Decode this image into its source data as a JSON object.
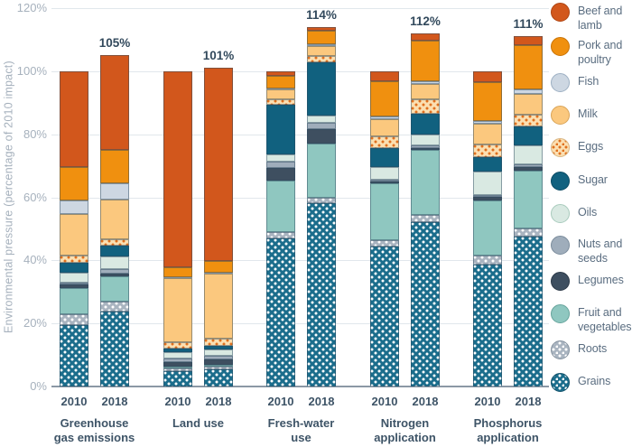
{
  "chart_data": {
    "type": "bar",
    "stacked": true,
    "ylabel": "Environmental pressure (percentage of 2010 impact)",
    "ylim": [
      0,
      120
    ],
    "ytick_values": [
      0,
      20,
      40,
      60,
      80,
      100,
      120
    ],
    "ytick_labels": [
      "0%",
      "20%",
      "40%",
      "60%",
      "80%",
      "100%",
      "120%"
    ],
    "grid": true,
    "legend_position": "right",
    "stack_order_bottom_up": [
      "grains",
      "roots",
      "fruit_and_vegetables",
      "legumes",
      "nuts_and_seeds",
      "oils",
      "sugar",
      "eggs",
      "milk",
      "fish",
      "pork_and_poultry",
      "beef_and_lamb"
    ],
    "categories": [
      {
        "key": "beef_and_lamb",
        "label": "Beef and lamb",
        "color": "#d2571c",
        "border": "#ae4513",
        "pattern": "solid"
      },
      {
        "key": "pork_and_poultry",
        "label": "Pork and poultry",
        "color": "#f0900f",
        "border": "#c97408",
        "pattern": "solid"
      },
      {
        "key": "fish",
        "label": "Fish",
        "color": "#cdd7e2",
        "border": "#9db0c3",
        "pattern": "solid"
      },
      {
        "key": "milk",
        "label": "Milk",
        "color": "#fbc87e",
        "border": "#d9a458",
        "pattern": "solid"
      },
      {
        "key": "eggs",
        "label": "Eggs",
        "color": "#fbdfb1",
        "border": "#d9b581",
        "pattern": "dots",
        "dot_color": "#e0701e"
      },
      {
        "key": "sugar",
        "label": "Sugar",
        "color": "#11617f",
        "border": "#0b4b64",
        "pattern": "solid"
      },
      {
        "key": "oils",
        "label": "Oils",
        "color": "#d9e9e2",
        "border": "#a9cbbd",
        "pattern": "solid"
      },
      {
        "key": "nuts_and_seeds",
        "label": "Nuts and seeds",
        "color": "#9fadbb",
        "border": "#7b8c9c",
        "pattern": "solid"
      },
      {
        "key": "legumes",
        "label": "Legumes",
        "color": "#3e4f60",
        "border": "#2c3a48",
        "pattern": "solid"
      },
      {
        "key": "fruit_and_vegetables",
        "label": "Fruit and vegetables",
        "color": "#8fc7c0",
        "border": "#66a49c",
        "pattern": "solid"
      },
      {
        "key": "roots",
        "label": "Roots",
        "color": "#a9b4c0",
        "border": "#85929f",
        "pattern": "dots",
        "dot_color": "#ffffff"
      },
      {
        "key": "grains",
        "label": "Grains",
        "color": "#1b6d8c",
        "border": "#104f68",
        "pattern": "dots",
        "dot_color": "#ffffff"
      }
    ],
    "groups": [
      {
        "label": "Greenhouse gas emissions",
        "bars": [
          {
            "year": "2010",
            "total": 100,
            "annotation": "",
            "values": {
              "grains": 19.5,
              "roots": 3.3,
              "fruit_and_vegetables": 8.3,
              "legumes": 1.3,
              "nuts_and_seeds": 0.4,
              "oils": 3.4,
              "sugar": 3.1,
              "eggs": 2.2,
              "milk": 13.1,
              "fish": 4.3,
              "pork_and_poultry": 10.6,
              "beef_and_lamb": 30.5
            }
          },
          {
            "year": "2018",
            "total": 105,
            "annotation": "105%",
            "values": {
              "grains": 23.8,
              "roots": 3.1,
              "fruit_and_vegetables": 8.1,
              "legumes": 0.9,
              "nuts_and_seeds": 1.3,
              "oils": 4.1,
              "sugar": 3.5,
              "eggs": 1.9,
              "milk": 12.5,
              "fish": 5.3,
              "pork_and_poultry": 10.5,
              "beef_and_lamb": 30.0
            }
          }
        ]
      },
      {
        "label": "Land use",
        "bars": [
          {
            "year": "2010",
            "total": 100,
            "annotation": "",
            "values": {
              "grains": 5.0,
              "roots": 0.8,
              "fruit_and_vegetables": 0.6,
              "legumes": 1.2,
              "nuts_and_seeds": 1.2,
              "oils": 2.0,
              "sugar": 1.2,
              "eggs": 2.1,
              "milk": 20.2,
              "fish": 0.3,
              "pork_and_poultry": 3.3,
              "beef_and_lamb": 62.1
            }
          },
          {
            "year": "2018",
            "total": 101,
            "annotation": "101%",
            "values": {
              "grains": 5.4,
              "roots": 0.8,
              "fruit_and_vegetables": 0.8,
              "legumes": 1.6,
              "nuts_and_seeds": 1.2,
              "oils": 2.0,
              "sugar": 1.2,
              "eggs": 2.2,
              "milk": 20.6,
              "fish": 0.4,
              "pork_and_poultry": 3.6,
              "beef_and_lamb": 61.2
            }
          }
        ]
      },
      {
        "label": "Fresh-water use",
        "bars": [
          {
            "year": "2010",
            "total": 100,
            "annotation": "",
            "values": {
              "grains": 47.0,
              "roots": 2.0,
              "fruit_and_vegetables": 16.4,
              "legumes": 4.0,
              "nuts_and_seeds": 1.9,
              "oils": 2.2,
              "sugar": 15.8,
              "eggs": 1.7,
              "milk": 3.1,
              "fish": 0.5,
              "pork_and_poultry": 3.8,
              "beef_and_lamb": 1.6
            }
          },
          {
            "year": "2018",
            "total": 114,
            "annotation": "114%",
            "values": {
              "grains": 58.0,
              "roots": 1.8,
              "fruit_and_vegetables": 17.3,
              "legumes": 4.4,
              "nuts_and_seeds": 2.1,
              "oils": 2.3,
              "sugar": 16.8,
              "eggs": 2.1,
              "milk": 3.1,
              "fish": 0.7,
              "pork_and_poultry": 4.1,
              "beef_and_lamb": 1.3
            }
          }
        ]
      },
      {
        "label": "Nitrogen application",
        "bars": [
          {
            "year": "2010",
            "total": 100,
            "annotation": "",
            "values": {
              "grains": 44.4,
              "roots": 2.1,
              "fruit_and_vegetables": 17.9,
              "legumes": 0.5,
              "nuts_and_seeds": 0.7,
              "oils": 4.1,
              "sugar": 6.0,
              "eggs": 3.6,
              "milk": 5.4,
              "fish": 0.8,
              "pork_and_poultry": 11.4,
              "beef_and_lamb": 3.1
            }
          },
          {
            "year": "2018",
            "total": 112,
            "annotation": "112%",
            "values": {
              "grains": 52.0,
              "roots": 2.4,
              "fruit_and_vegetables": 20.7,
              "legumes": 0.6,
              "nuts_and_seeds": 0.7,
              "oils": 3.5,
              "sugar": 6.7,
              "eggs": 4.4,
              "milk": 4.8,
              "fish": 0.9,
              "pork_and_poultry": 13.1,
              "beef_and_lamb": 2.2
            }
          }
        ]
      },
      {
        "label": "Phosphorus application",
        "bars": [
          {
            "year": "2010",
            "total": 100,
            "annotation": "",
            "values": {
              "grains": 38.6,
              "roots": 2.9,
              "fruit_and_vegetables": 17.4,
              "legumes": 1.2,
              "nuts_and_seeds": 0.6,
              "oils": 7.6,
              "sugar": 4.4,
              "eggs": 4.1,
              "milk": 6.5,
              "fish": 1.0,
              "pork_and_poultry": 12.2,
              "beef_and_lamb": 3.5
            }
          },
          {
            "year": "2018",
            "total": 111,
            "annotation": "111%",
            "values": {
              "grains": 47.4,
              "roots": 2.7,
              "fruit_and_vegetables": 18.4,
              "legumes": 1.2,
              "nuts_and_seeds": 0.7,
              "oils": 6.0,
              "sugar": 6.0,
              "eggs": 3.8,
              "milk": 6.7,
              "fish": 1.4,
              "pork_and_poultry": 13.9,
              "beef_and_lamb": 2.8
            }
          }
        ]
      }
    ],
    "palette": {
      "background": "#ffffff",
      "axis_text": "#a6b1bd",
      "category_label_text": "#3e5467",
      "annotation_text": "#32495c",
      "legend_text": "#5a6d80",
      "gridline": "#e1e7ec",
      "axis_line": "#8b98a5"
    }
  }
}
